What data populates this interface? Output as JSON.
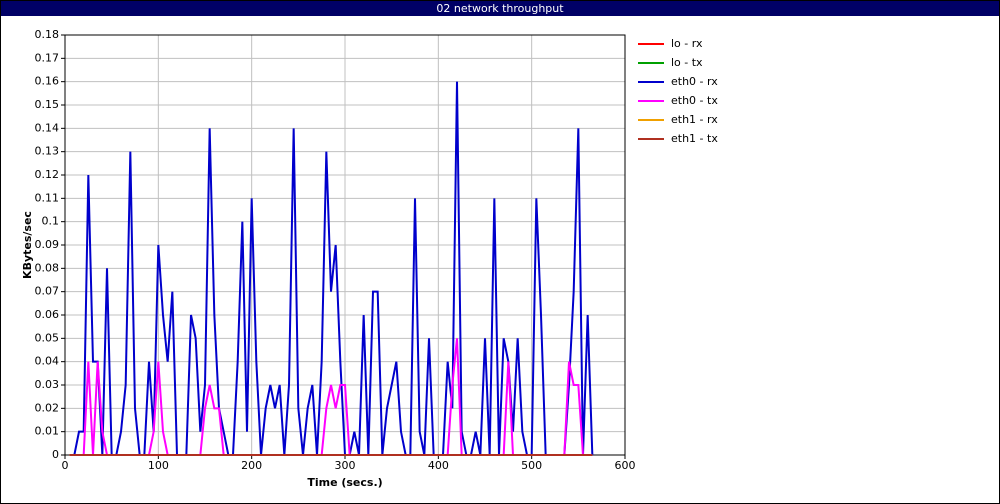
{
  "chart_data": {
    "type": "line",
    "title": "02 network throughput",
    "x_label": "Time (secs.)",
    "y_label": "KBytes/sec",
    "x": [
      5,
      10,
      15,
      20,
      25,
      30,
      35,
      40,
      45,
      50,
      55,
      60,
      65,
      70,
      75,
      80,
      85,
      90,
      95,
      100,
      105,
      110,
      115,
      120,
      125,
      130,
      135,
      140,
      145,
      150,
      155,
      160,
      165,
      170,
      175,
      180,
      185,
      190,
      195,
      200,
      205,
      210,
      215,
      220,
      225,
      230,
      235,
      240,
      245,
      250,
      255,
      260,
      265,
      270,
      275,
      280,
      285,
      290,
      295,
      300,
      305,
      310,
      315,
      320,
      325,
      330,
      335,
      340,
      345,
      350,
      355,
      360,
      365,
      370,
      375,
      380,
      385,
      390,
      395,
      400,
      405,
      410,
      415,
      420,
      425,
      430,
      435,
      440,
      445,
      450,
      455,
      460,
      465,
      470,
      475,
      480,
      485,
      490,
      495,
      500,
      505,
      510,
      515,
      520,
      525,
      530,
      535,
      540,
      545,
      550,
      555,
      560,
      565
    ],
    "series": [
      {
        "name": "lo - rx",
        "color": "#ff0000",
        "values": [
          0,
          0,
          0,
          0,
          0,
          0,
          0,
          0,
          0,
          0,
          0,
          0,
          0,
          0,
          0,
          0,
          0,
          0,
          0,
          0,
          0,
          0,
          0,
          0,
          0,
          0,
          0,
          0,
          0,
          0,
          0,
          0,
          0,
          0,
          0,
          0,
          0,
          0,
          0,
          0,
          0,
          0,
          0,
          0,
          0,
          0,
          0,
          0,
          0,
          0,
          0,
          0,
          0,
          0,
          0,
          0,
          0,
          0,
          0,
          0,
          0,
          0,
          0,
          0,
          0,
          0,
          0,
          0,
          0,
          0,
          0,
          0,
          0,
          0,
          0,
          0,
          0,
          0,
          0,
          0,
          0,
          0,
          0,
          0,
          0,
          0,
          0,
          0,
          0,
          0,
          0,
          0,
          0,
          0,
          0,
          0,
          0,
          0,
          0,
          0,
          0,
          0,
          0,
          0,
          0,
          0,
          0,
          0,
          0,
          0,
          0,
          0,
          0
        ]
      },
      {
        "name": "lo - tx",
        "color": "#00a000",
        "values": [
          0,
          0,
          0,
          0,
          0,
          0,
          0,
          0,
          0,
          0,
          0,
          0,
          0,
          0,
          0,
          0,
          0,
          0,
          0,
          0,
          0,
          0,
          0,
          0,
          0,
          0,
          0,
          0,
          0,
          0,
          0,
          0,
          0,
          0,
          0,
          0,
          0,
          0,
          0,
          0,
          0,
          0,
          0,
          0,
          0,
          0,
          0,
          0,
          0,
          0,
          0,
          0,
          0,
          0,
          0,
          0,
          0,
          0,
          0,
          0,
          0,
          0,
          0,
          0,
          0,
          0,
          0,
          0,
          0,
          0,
          0,
          0,
          0,
          0,
          0,
          0,
          0,
          0,
          0,
          0,
          0,
          0,
          0,
          0,
          0,
          0,
          0,
          0,
          0,
          0,
          0,
          0,
          0,
          0,
          0,
          0,
          0,
          0,
          0,
          0,
          0,
          0,
          0,
          0,
          0,
          0,
          0,
          0,
          0,
          0,
          0,
          0,
          0
        ]
      },
      {
        "name": "eth0 - rx",
        "color": "#0000cc",
        "values": [
          0,
          0,
          0.01,
          0.01,
          0.12,
          0.04,
          0.04,
          0,
          0.08,
          0,
          0,
          0.01,
          0.03,
          0.13,
          0.02,
          0,
          0,
          0.04,
          0.01,
          0.09,
          0.06,
          0.04,
          0.07,
          0,
          0,
          0,
          0.06,
          0.05,
          0.01,
          0.03,
          0.14,
          0.06,
          0.02,
          0.01,
          0,
          0,
          0.04,
          0.1,
          0.01,
          0.11,
          0.04,
          0,
          0.02,
          0.03,
          0.02,
          0.03,
          0,
          0.03,
          0.14,
          0.02,
          0,
          0.02,
          0.03,
          0,
          0.04,
          0.13,
          0.07,
          0.09,
          0.04,
          0,
          0,
          0.01,
          0,
          0.06,
          0,
          0.07,
          0.07,
          0,
          0.02,
          0.03,
          0.04,
          0.01,
          0,
          0,
          0.11,
          0.01,
          0,
          0.05,
          0,
          0,
          0,
          0.04,
          0.02,
          0.16,
          0.01,
          0,
          0,
          0.01,
          0,
          0.05,
          0,
          0.11,
          0,
          0.05,
          0.04,
          0.01,
          0.05,
          0.01,
          0,
          0,
          0.11,
          0.06,
          0,
          0,
          0,
          0,
          0,
          0.03,
          0.07,
          0.14,
          0,
          0.06,
          0
        ]
      },
      {
        "name": "eth0 - tx",
        "color": "#ff00ff",
        "values": [
          0,
          0,
          0,
          0,
          0.04,
          0,
          0.04,
          0.01,
          0,
          0,
          0,
          0,
          0,
          0,
          0,
          0,
          0,
          0,
          0.01,
          0.04,
          0.01,
          0,
          0,
          0,
          0,
          0,
          0,
          0,
          0,
          0.02,
          0.03,
          0.02,
          0.02,
          0,
          0,
          0,
          0,
          0,
          0,
          0,
          0,
          0,
          0,
          0,
          0,
          0,
          0,
          0,
          0,
          0,
          0,
          0,
          0,
          0,
          0,
          0.02,
          0.03,
          0.02,
          0.03,
          0.03,
          0,
          0,
          0,
          0,
          0,
          0,
          0,
          0,
          0,
          0,
          0,
          0,
          0,
          0,
          0,
          0,
          0,
          0,
          0,
          0,
          0,
          0,
          0.03,
          0.05,
          0,
          0,
          0,
          0,
          0,
          0,
          0,
          0,
          0,
          0,
          0.04,
          0,
          0,
          0,
          0,
          0,
          0,
          0,
          0,
          0,
          0,
          0,
          0,
          0.04,
          0.03,
          0.03,
          0,
          0,
          0
        ]
      },
      {
        "name": "eth1 - rx",
        "color": "#f0a000",
        "values": [
          0,
          0,
          0,
          0,
          0,
          0,
          0,
          0,
          0,
          0,
          0,
          0,
          0,
          0,
          0,
          0,
          0,
          0,
          0,
          0,
          0,
          0,
          0,
          0,
          0,
          0,
          0,
          0,
          0,
          0,
          0,
          0,
          0,
          0,
          0,
          0,
          0,
          0,
          0,
          0,
          0,
          0,
          0,
          0,
          0,
          0,
          0,
          0,
          0,
          0,
          0,
          0,
          0,
          0,
          0,
          0,
          0,
          0,
          0,
          0,
          0,
          0,
          0,
          0,
          0,
          0,
          0,
          0,
          0,
          0,
          0,
          0,
          0,
          0,
          0,
          0,
          0,
          0,
          0,
          0,
          0,
          0,
          0,
          0,
          0,
          0,
          0,
          0,
          0,
          0,
          0,
          0,
          0,
          0,
          0,
          0,
          0,
          0,
          0,
          0,
          0,
          0,
          0,
          0,
          0,
          0,
          0,
          0,
          0,
          0,
          0,
          0,
          0
        ]
      },
      {
        "name": "eth1 - tx",
        "color": "#b03020",
        "values": [
          0,
          0,
          0,
          0,
          0,
          0,
          0,
          0,
          0,
          0,
          0,
          0,
          0,
          0,
          0,
          0,
          0,
          0,
          0,
          0,
          0,
          0,
          0,
          0,
          0,
          0,
          0,
          0,
          0,
          0,
          0,
          0,
          0,
          0,
          0,
          0,
          0,
          0,
          0,
          0,
          0,
          0,
          0,
          0,
          0,
          0,
          0,
          0,
          0,
          0,
          0,
          0,
          0,
          0,
          0,
          0,
          0,
          0,
          0,
          0,
          0,
          0,
          0,
          0,
          0,
          0,
          0,
          0,
          0,
          0,
          0,
          0,
          0,
          0,
          0,
          0,
          0,
          0,
          0,
          0,
          0,
          0,
          0,
          0,
          0,
          0,
          0,
          0,
          0,
          0,
          0,
          0,
          0,
          0,
          0,
          0,
          0,
          0,
          0,
          0,
          0,
          0,
          0,
          0,
          0,
          0,
          0,
          0,
          0,
          0,
          0,
          0,
          0
        ]
      }
    ],
    "xlim": [
      0,
      600
    ],
    "xticks": [
      0,
      100,
      200,
      300,
      400,
      500,
      600
    ],
    "ylim": [
      0,
      0.18
    ],
    "yticks": [
      0,
      0.01,
      0.02,
      0.03,
      0.04,
      0.05,
      0.06,
      0.07,
      0.08,
      0.09,
      0.1,
      0.11,
      0.12,
      0.13,
      0.14,
      0.15,
      0.16,
      0.17,
      0.18
    ],
    "grid": true
  }
}
